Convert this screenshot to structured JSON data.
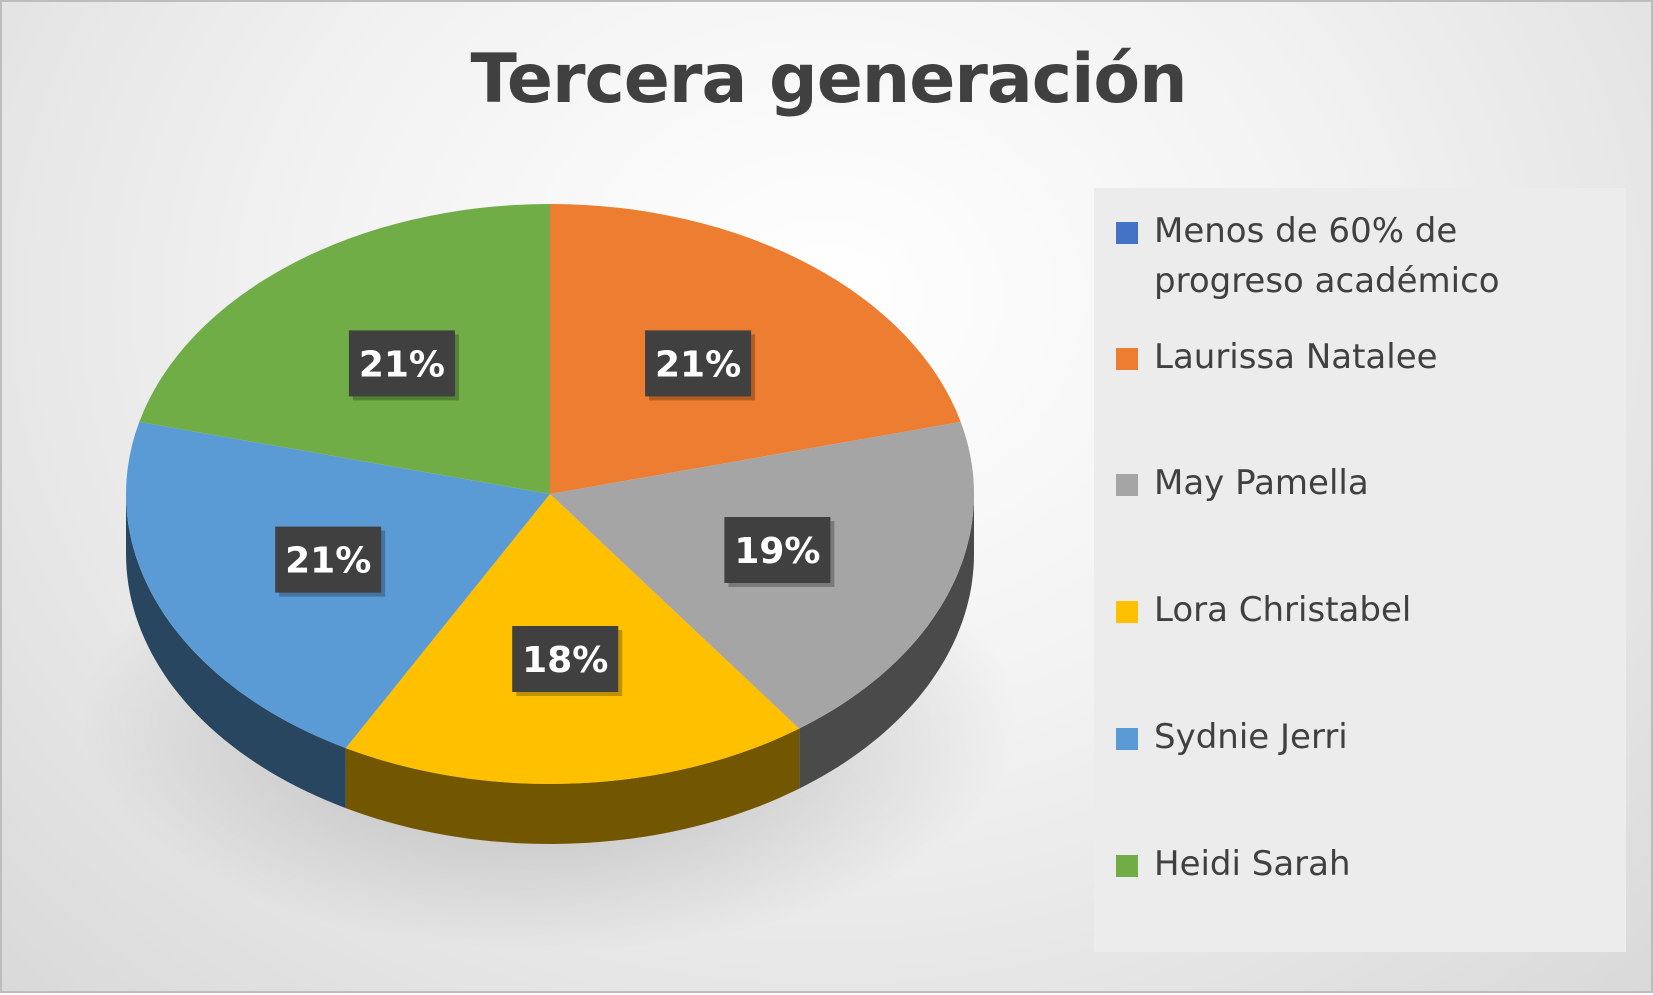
{
  "chart_data": {
    "type": "pie",
    "title": "Tercera generación",
    "categories": [
      "Menos de 60% de progreso académico",
      "Laurissa Natalee",
      "May Pamella",
      "Lora Christabel",
      "Sydnie Jerri",
      "Heidi Sarah"
    ],
    "values": [
      0,
      21,
      19,
      18,
      21,
      21
    ],
    "data_labels": [
      "",
      "21%",
      "19%",
      "18%",
      "21%",
      "21%"
    ],
    "colors": [
      "#4472c4",
      "#ed7d31",
      "#a5a5a5",
      "#ffc000",
      "#5b9bd5",
      "#70ad47"
    ],
    "legend_position": "right",
    "style": "3d-pie"
  }
}
